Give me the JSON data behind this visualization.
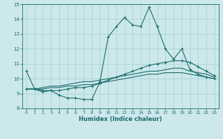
{
  "xlabel": "Humidex (Indice chaleur)",
  "ylabel": "",
  "background_color": "#cce8ea",
  "grid_color": "#aad4d6",
  "line_color": "#1a6b6b",
  "xlim": [
    -0.5,
    23.5
  ],
  "ylim": [
    8,
    15
  ],
  "xticks": [
    0,
    1,
    2,
    3,
    4,
    5,
    6,
    7,
    8,
    9,
    10,
    11,
    12,
    13,
    14,
    15,
    16,
    17,
    18,
    19,
    20,
    21,
    22,
    23
  ],
  "yticks": [
    8,
    9,
    10,
    11,
    12,
    13,
    14,
    15
  ],
  "curve1": [
    10.5,
    9.3,
    9.1,
    9.2,
    8.9,
    8.7,
    8.7,
    8.6,
    8.6,
    9.8,
    12.8,
    13.5,
    14.1,
    13.6,
    13.5,
    14.8,
    13.5,
    12.0,
    11.3,
    12.0,
    10.6,
    10.3,
    10.1,
    10.0
  ],
  "curve2": [
    9.3,
    9.3,
    9.2,
    9.2,
    9.2,
    9.3,
    9.4,
    9.4,
    9.5,
    9.7,
    9.9,
    10.1,
    10.3,
    10.5,
    10.7,
    10.9,
    11.0,
    11.1,
    11.2,
    11.2,
    11.1,
    10.8,
    10.5,
    10.2
  ],
  "curve3": [
    9.3,
    9.3,
    9.3,
    9.4,
    9.4,
    9.5,
    9.5,
    9.6,
    9.6,
    9.7,
    9.8,
    9.9,
    10.0,
    10.1,
    10.2,
    10.3,
    10.3,
    10.4,
    10.4,
    10.4,
    10.3,
    10.2,
    10.1,
    10.0
  ],
  "curve4": [
    9.3,
    9.3,
    9.4,
    9.5,
    9.5,
    9.6,
    9.7,
    9.8,
    9.8,
    9.9,
    10.0,
    10.1,
    10.2,
    10.3,
    10.4,
    10.5,
    10.5,
    10.6,
    10.7,
    10.7,
    10.5,
    10.4,
    10.3,
    10.1
  ]
}
